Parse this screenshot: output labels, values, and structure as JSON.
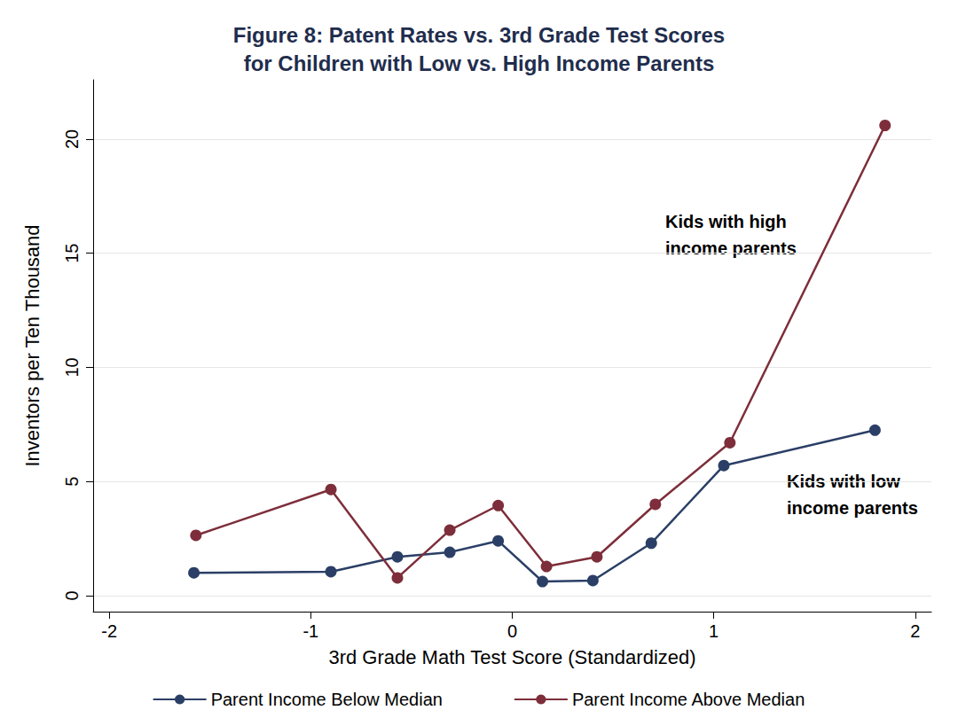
{
  "chart_data": {
    "type": "line",
    "title": "Figure 8: Patent Rates vs. 3rd Grade Test Scores\nfor Children with Low vs. High Income Parents",
    "x_label": "3rd Grade Math Test Score (Standardized)",
    "y_label": "Inventors per Ten Thousand",
    "annotations": [
      "Kids with high\nincome parents",
      "Kids with low\nincome parents"
    ],
    "series": [
      {
        "name": "Parent Income Below Median",
        "color": "#2b3f66",
        "marker": "circle",
        "x": [
          -1.58,
          -0.9,
          -0.57,
          -0.31,
          -0.07,
          0.15,
          0.4,
          0.69,
          1.05,
          1.8
        ],
        "values": [
          1.0,
          1.05,
          1.7,
          1.9,
          2.4,
          0.62,
          0.66,
          2.3,
          5.7,
          7.25
        ]
      },
      {
        "name": "Parent Income Above Median",
        "color": "#7d2e3a",
        "marker": "circle",
        "x": [
          -1.57,
          -0.9,
          -0.57,
          -0.31,
          -0.07,
          0.17,
          0.42,
          0.71,
          1.08,
          1.85
        ],
        "values": [
          2.64,
          4.65,
          0.78,
          2.87,
          3.95,
          1.28,
          1.7,
          4.0,
          6.7,
          20.6
        ]
      }
    ],
    "xlim": [
      -2.08,
      2.08
    ],
    "xticks": [
      -2,
      -1,
      0,
      1,
      2
    ],
    "ylim": [
      -0.7,
      22.6
    ],
    "yticks": [
      0,
      5,
      10,
      15,
      20
    ],
    "grid": true,
    "legend": "bottom"
  }
}
